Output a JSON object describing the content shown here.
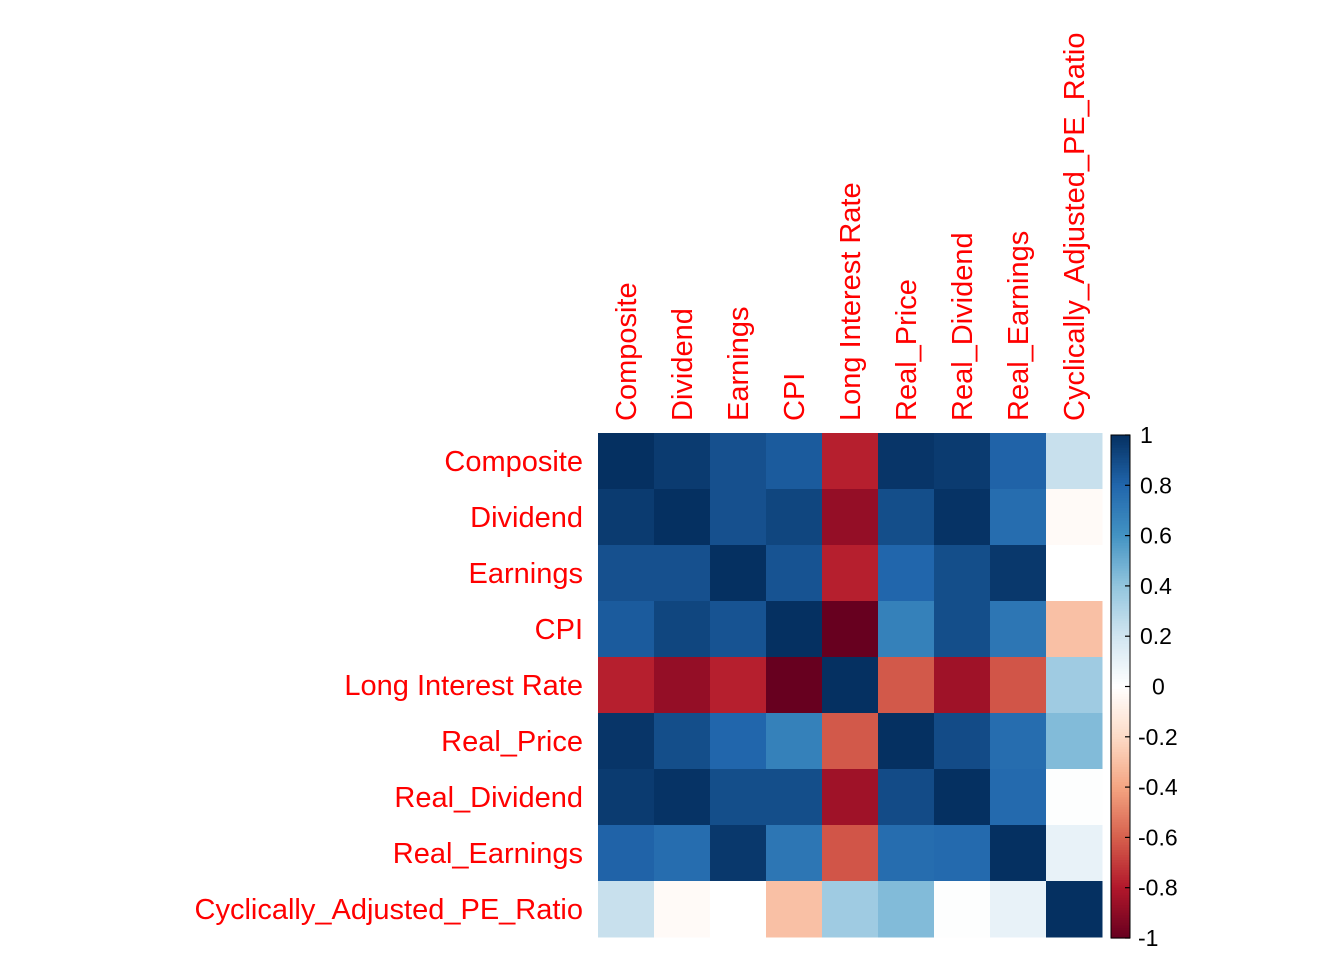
{
  "chart_data": {
    "type": "heatmap",
    "title": "",
    "variables": [
      "Composite",
      "Dividend",
      "Earnings",
      "CPI",
      "Long Interest Rate",
      "Real_Price",
      "Real_Dividend",
      "Real_Earnings",
      "Cyclically_Adjusted_PE_Ratio"
    ],
    "matrix": [
      [
        1.0,
        0.96,
        0.88,
        0.84,
        -0.78,
        0.98,
        0.96,
        0.81,
        0.23
      ],
      [
        0.96,
        1.0,
        0.88,
        0.92,
        -0.88,
        0.89,
        0.99,
        0.77,
        -0.03
      ],
      [
        0.88,
        0.88,
        1.0,
        0.87,
        -0.78,
        0.8,
        0.89,
        0.97,
        0.0
      ],
      [
        0.84,
        0.92,
        0.87,
        1.0,
        -1.0,
        0.68,
        0.89,
        0.73,
        -0.3
      ],
      [
        -0.78,
        -0.88,
        -0.78,
        -1.0,
        1.0,
        -0.62,
        -0.85,
        -0.63,
        0.36
      ],
      [
        0.98,
        0.89,
        0.8,
        0.68,
        -0.62,
        1.0,
        0.9,
        0.77,
        0.44
      ],
      [
        0.96,
        0.99,
        0.89,
        0.89,
        -0.85,
        0.9,
        1.0,
        0.78,
        0.01
      ],
      [
        0.81,
        0.77,
        0.97,
        0.73,
        -0.63,
        0.77,
        0.78,
        1.0,
        0.1
      ],
      [
        0.23,
        -0.03,
        0.0,
        -0.3,
        0.36,
        0.44,
        0.01,
        0.1,
        1.0
      ]
    ],
    "colorbar": {
      "range": [
        -1,
        1
      ],
      "ticks": [
        "-1",
        "-0.8",
        "-0.6",
        "-0.4",
        "-0.2",
        "0",
        "0.2",
        "0.4",
        "0.6",
        "0.8",
        "1"
      ],
      "palette": [
        "#67001F",
        "#B2182B",
        "#D6604D",
        "#F4A582",
        "#FDDBC7",
        "#FFFFFF",
        "#D1E5F0",
        "#92C5DE",
        "#4393C3",
        "#2166AC",
        "#053061"
      ]
    },
    "label_color": "#FF0000"
  }
}
